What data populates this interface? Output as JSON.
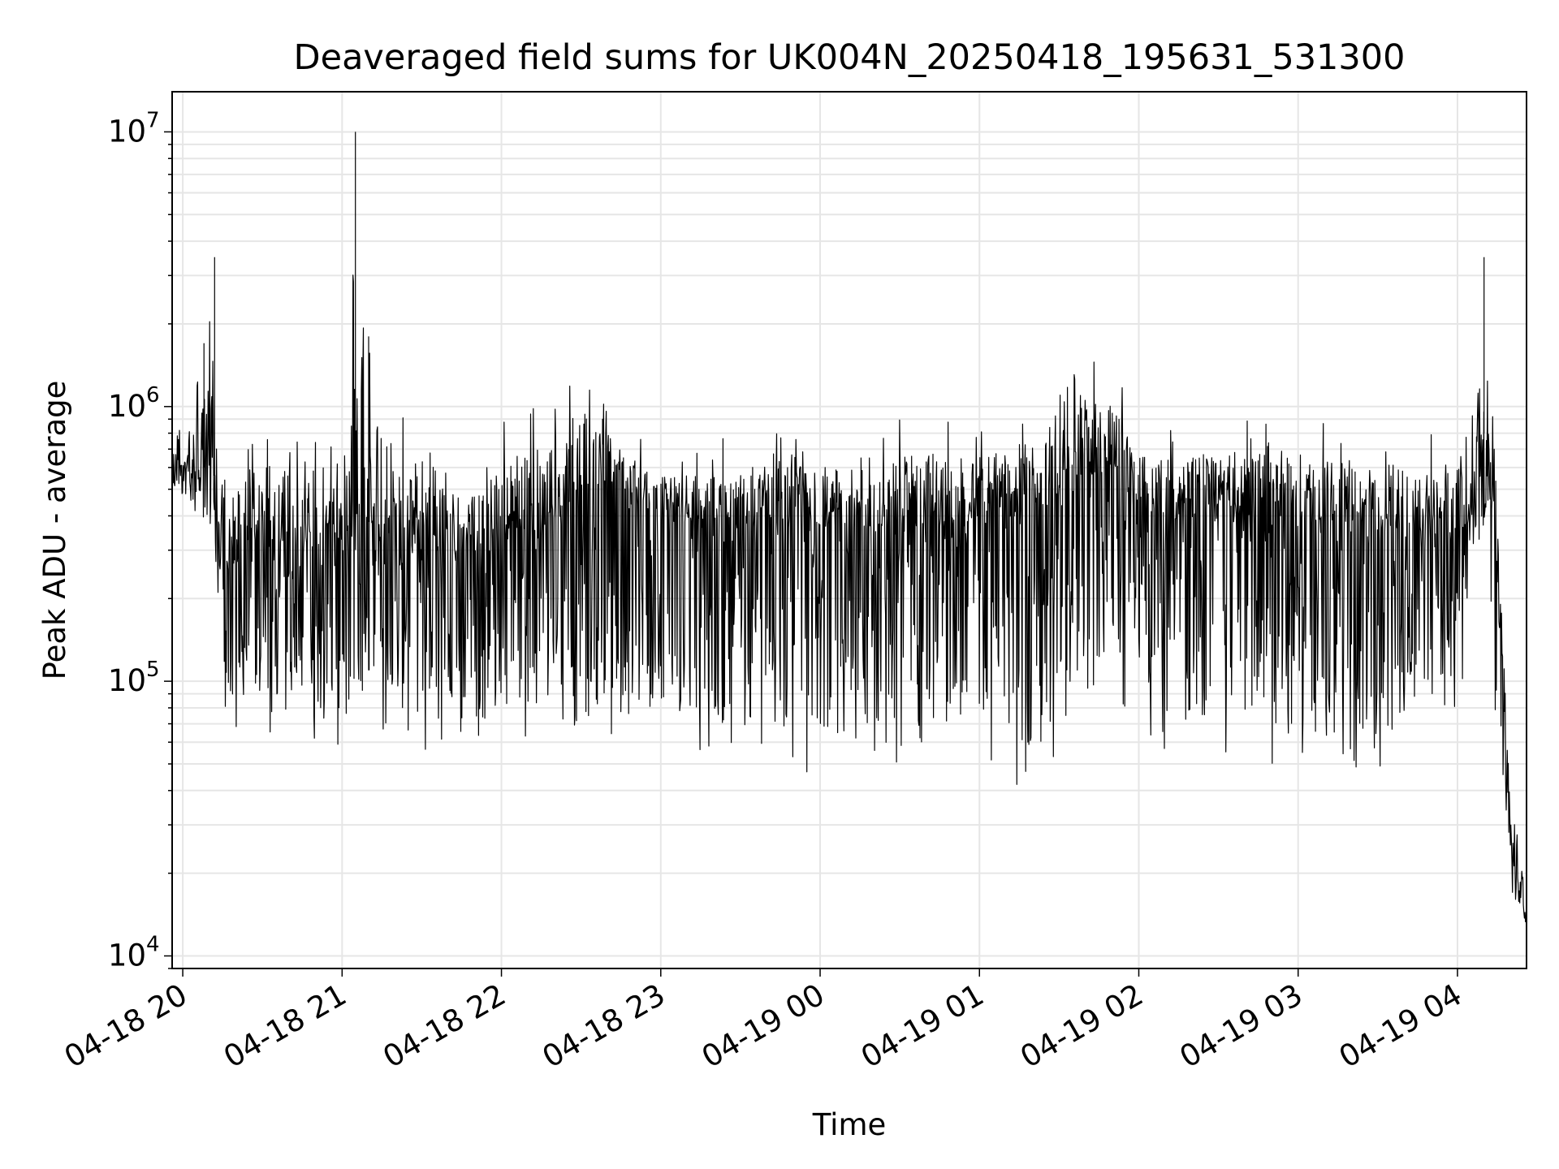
{
  "chart_data": {
    "type": "line",
    "title": "Deaveraged field sums for UK004N_20250418_195631_531300",
    "xlabel": "Time",
    "ylabel": "Peak ADU - average",
    "yscale": "log",
    "ylim": [
      9000,
      14000000
    ],
    "xlim": [
      "2025-04-18 19:56",
      "2025-04-19 04:26"
    ],
    "x_ticks": [
      "04-18 20",
      "04-18 21",
      "04-18 22",
      "04-18 23",
      "04-19 00",
      "04-19 01",
      "04-19 02",
      "04-19 03",
      "04-19 04"
    ],
    "y_ticks": [
      {
        "base": "10",
        "exp": "4"
      },
      {
        "base": "10",
        "exp": "5"
      },
      {
        "base": "10",
        "exp": "6"
      },
      {
        "base": "10",
        "exp": "7"
      }
    ],
    "grid": true,
    "line_color": "#000000",
    "series": [
      {
        "x": [
          "2025-04-18 19:56",
          "2025-04-18 20:02",
          "2025-04-18 20:08",
          "2025-04-18 20:12",
          "2025-04-18 20:16",
          "2025-04-18 20:20",
          "2025-04-18 20:24",
          "2025-04-18 20:30",
          "2025-04-18 20:40",
          "2025-04-18 20:50",
          "2025-04-18 21:00",
          "2025-04-18 21:05",
          "2025-04-18 21:10",
          "2025-04-18 21:20",
          "2025-04-18 21:30",
          "2025-04-18 21:40",
          "2025-04-18 21:50",
          "2025-04-18 22:00",
          "2025-04-18 22:15",
          "2025-04-18 22:30",
          "2025-04-18 22:40",
          "2025-04-18 22:50",
          "2025-04-18 23:00",
          "2025-04-18 23:15",
          "2025-04-18 23:30",
          "2025-04-18 23:45",
          "2025-04-19 00:00",
          "2025-04-19 00:15",
          "2025-04-19 00:30",
          "2025-04-19 00:45",
          "2025-04-19 01:00",
          "2025-04-19 01:15",
          "2025-04-19 01:30",
          "2025-04-19 01:40",
          "2025-04-19 01:50",
          "2025-04-19 02:00",
          "2025-04-19 02:15",
          "2025-04-19 02:30",
          "2025-04-19 02:45",
          "2025-04-19 03:00",
          "2025-04-19 03:15",
          "2025-04-19 03:30",
          "2025-04-19 03:45",
          "2025-04-19 04:00",
          "2025-04-19 04:05",
          "2025-04-19 04:10",
          "2025-04-19 04:15",
          "2025-04-19 04:20",
          "2025-04-19 04:26"
        ],
        "median": [
          600000,
          620000,
          600000,
          560000,
          300000,
          320000,
          380000,
          400000,
          380000,
          370000,
          380000,
          500000,
          380000,
          350000,
          330000,
          320000,
          320000,
          350000,
          420000,
          550000,
          600000,
          500000,
          440000,
          430000,
          420000,
          420000,
          420000,
          420000,
          430000,
          440000,
          450000,
          470000,
          520000,
          650000,
          680000,
          460000,
          450000,
          450000,
          440000,
          430000,
          420000,
          410000,
          400000,
          400000,
          420000,
          800000,
          350000,
          25000,
          14000
        ],
        "upper": [
          800000,
          900000,
          1700000,
          3500000,
          650000,
          700000,
          800000,
          900000,
          900000,
          800000,
          700000,
          10000000,
          1800000,
          1300000,
          800000,
          700000,
          700000,
          900000,
          1100000,
          1600000,
          1000000,
          800000,
          700000,
          750000,
          800000,
          800000,
          800000,
          800000,
          900000,
          1000000,
          900000,
          900000,
          1100000,
          1500000,
          1400000,
          900000,
          850000,
          900000,
          900000,
          900000,
          850000,
          800000,
          800000,
          800000,
          900000,
          3500000,
          500000,
          40000,
          20000
        ],
        "lower": [
          450000,
          450000,
          350000,
          250000,
          80000,
          65000,
          70000,
          60000,
          70000,
          60000,
          55000,
          55000,
          70000,
          60000,
          55000,
          55000,
          55000,
          55000,
          60000,
          50000,
          50000,
          55000,
          55000,
          55000,
          50000,
          50000,
          45000,
          55000,
          48000,
          50000,
          55000,
          40000,
          48000,
          70000,
          100000,
          60000,
          55000,
          55000,
          50000,
          45000,
          45000,
          45000,
          60000,
          60000,
          250000,
          300000,
          60000,
          16000,
          13000
        ]
      }
    ]
  }
}
